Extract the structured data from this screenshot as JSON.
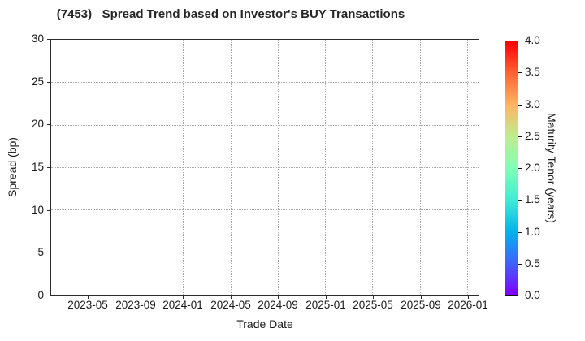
{
  "figure": {
    "title": "(7453)   Spread Trend based on Investor's BUY Transactions",
    "background": "#ffffff"
  },
  "axes": {
    "xlabel": "Trade Date",
    "ylabel": "Spread (bp)",
    "xtick_labels": [
      "2023-05",
      "2023-09",
      "2024-01",
      "2024-05",
      "2024-09",
      "2025-01",
      "2025-05",
      "2025-09",
      "2026-01"
    ],
    "ytick_labels": [
      "0",
      "5",
      "10",
      "15",
      "20",
      "25",
      "30"
    ],
    "grid_color": "#a8a8a8",
    "spine_color": "#2b2b2b"
  },
  "colorbar": {
    "label": "Maturity Tenor (years)",
    "tick_labels": [
      "0.0",
      "0.5",
      "1.0",
      "1.5",
      "2.0",
      "2.5",
      "3.0",
      "3.5",
      "4.0"
    ],
    "min": 0.0,
    "max": 4.0,
    "gradient_stops": [
      {
        "t": 0.0,
        "color": "#8000ff"
      },
      {
        "t": 0.125,
        "color": "#4062fa"
      },
      {
        "t": 0.25,
        "color": "#00b5ec"
      },
      {
        "t": 0.375,
        "color": "#40ecd4"
      },
      {
        "t": 0.5,
        "color": "#80ffb5"
      },
      {
        "t": 0.625,
        "color": "#bfec8e"
      },
      {
        "t": 0.75,
        "color": "#ffb462"
      },
      {
        "t": 0.875,
        "color": "#ff6232"
      },
      {
        "t": 1.0,
        "color": "#ff0000"
      }
    ]
  },
  "chart_data": {
    "type": "scatter",
    "title": "(7453)   Spread Trend based on Investor's BUY Transactions",
    "xlabel": "Trade Date",
    "ylabel": "Spread (bp)",
    "x_tick_labels": [
      "2023-05",
      "2023-09",
      "2024-01",
      "2024-05",
      "2024-09",
      "2025-01",
      "2025-05",
      "2025-09",
      "2026-01"
    ],
    "ylim": [
      0,
      30
    ],
    "grid": "dotted, both axes",
    "legend": "colorbar right, Maturity Tenor (years), range 0.0-4.0, rainbow colormap",
    "series": []
  }
}
